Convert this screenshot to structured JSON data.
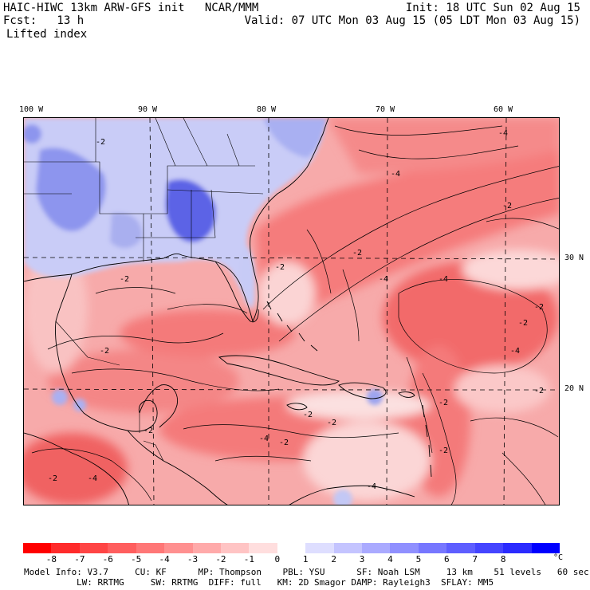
{
  "header": {
    "line1_left": "HAIC-HIWC 13km ARW-GFS init   NCAR/MMM",
    "line2_left": "Fcst:   13 h",
    "line3_left": "Lifted index",
    "line1_right": "Init: 18 UTC Sun 02 Aug 15",
    "line2_right": "Valid: 07 UTC Mon 03 Aug 15 (05 LDT Mon 03 Aug 15)"
  },
  "map": {
    "lon_ticks": [
      "100 W",
      "90 W",
      "80 W",
      "70 W",
      "60 W"
    ],
    "lat_ticks": [
      "30 N",
      "20 N"
    ],
    "contour_labels": [
      "-4",
      "-2",
      "-4",
      "-2",
      "-2",
      "-2",
      "-4",
      "-4",
      "-2",
      "-2",
      "-2",
      "-2",
      "-4",
      "-2",
      "-2",
      "-2",
      "-4",
      "-2",
      "-4",
      "-2",
      "-4",
      "-2",
      "-2",
      "-2"
    ]
  },
  "colorbar": {
    "labels": [
      "-8",
      "-7",
      "-6",
      "-5",
      "-4",
      "-3",
      "-2",
      "-1",
      "0",
      "1",
      "2",
      "3",
      "4",
      "5",
      "6",
      "7",
      "8"
    ],
    "unit": "°C",
    "colors": [
      "#ff0000",
      "#ff2b2b",
      "#ff4545",
      "#ff5e5e",
      "#ff7777",
      "#ff9090",
      "#ffaaaa",
      "#ffc4c4",
      "#ffdede",
      "#ffffff",
      "#dedeff",
      "#c4c4ff",
      "#aaaaff",
      "#9090ff",
      "#7777ff",
      "#5e5eff",
      "#4545ff",
      "#2b2bff",
      "#0000ff"
    ]
  },
  "model_info": {
    "line1": "Model Info: V3.7     CU: KF      MP: Thompson    PBL: YSU      SF: Noah LSM     13 km    51 levels   60 sec",
    "line2": "LW: RRTMG     SW: RRTMG  DIFF: full   KM: 2D Smagor DAMP: Rayleigh3  SFLAY: MM5"
  }
}
